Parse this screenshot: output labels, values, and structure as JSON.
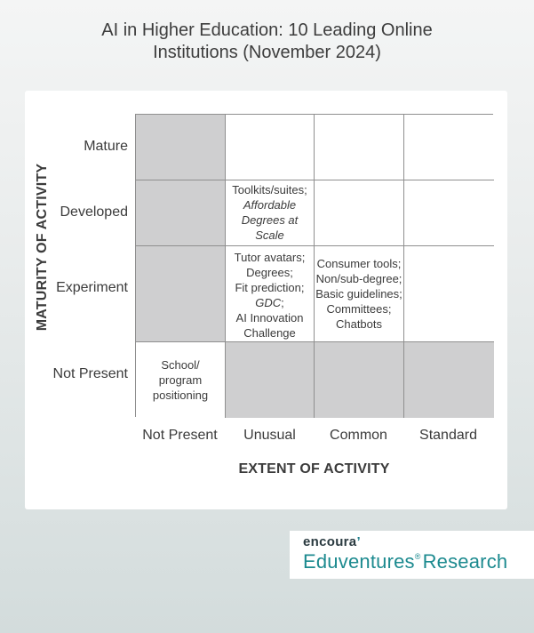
{
  "title": {
    "line1": "AI in Higher Education: 10 Leading Online",
    "line2": "Institutions (November 2024)"
  },
  "axes": {
    "y_label": "MATURITY OF ACTIVITY",
    "x_label": "EXTENT OF ACTIVITY"
  },
  "rows": [
    "Mature",
    "Developed",
    "Experiment",
    "Not Present"
  ],
  "columns": [
    "Not Present",
    "Unusual",
    "Common",
    "Standard"
  ],
  "cells": {
    "developed_unusual": {
      "line1": "Toolkits/suites;",
      "line2": "Affordable",
      "line3": "Degrees at",
      "line4": "Scale"
    },
    "experiment_unusual": {
      "line1": "Tutor avatars;",
      "line2": "Degrees;",
      "line3": "Fit prediction;",
      "line4": "GDC",
      "line4_suffix": ";",
      "line5": "AI Innovation",
      "line6": "Challenge"
    },
    "experiment_common": {
      "line1": "Consumer tools;",
      "line2": "Non/sub-degree;",
      "line3": "Basic guidelines;",
      "line4": "Committees;",
      "line5": "Chatbots"
    },
    "notpresent_notpresent": {
      "line1": "School/",
      "line2": "program",
      "line3": "positioning"
    }
  },
  "logo": {
    "brand": "encoura",
    "brand_mark": "’",
    "product": "Eduventures",
    "product_mark": "®",
    "product_suffix": "Research"
  },
  "colors": {
    "grey_cell": "#cfcfd0",
    "logo_teal": "#1c8a8f"
  }
}
